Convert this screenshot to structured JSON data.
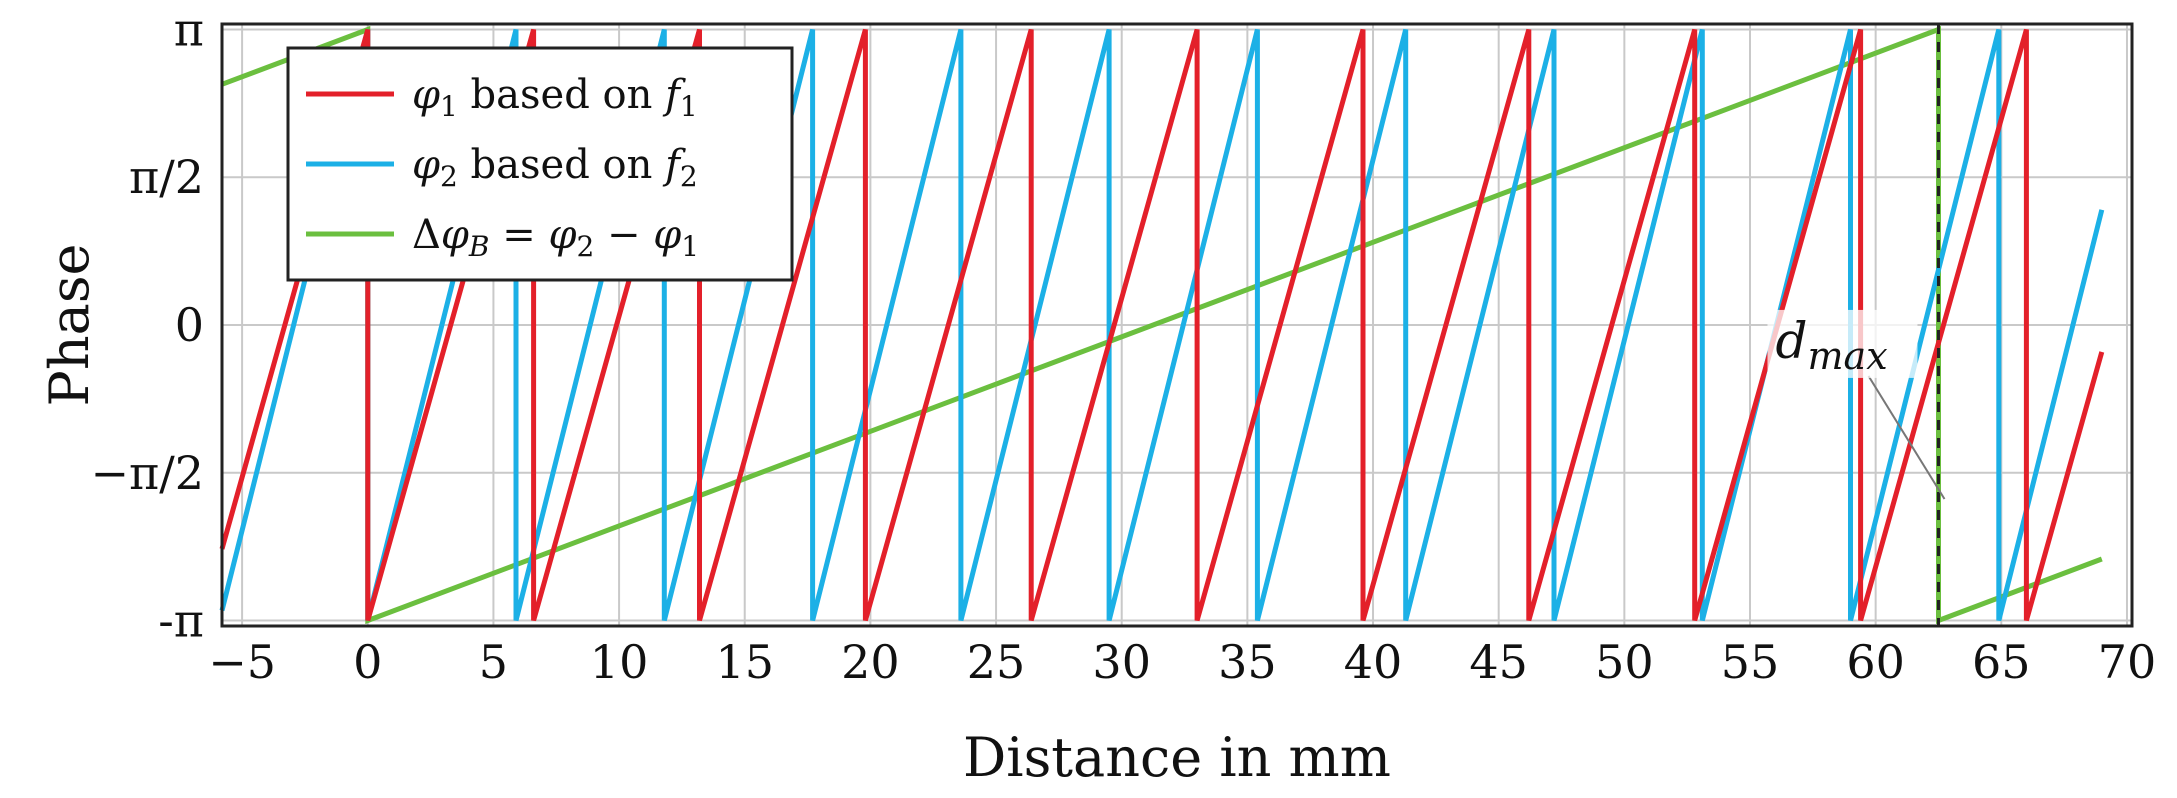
{
  "chart_data": {
    "type": "line",
    "xlabel": "Distance in mm",
    "ylabel": "Phase",
    "xlim": [
      -5.8,
      70.2
    ],
    "ylim": [
      -3.2,
      3.2
    ],
    "grid": true,
    "x_ticks": [
      -5,
      0,
      5,
      10,
      15,
      20,
      25,
      30,
      35,
      40,
      45,
      50,
      55,
      60,
      65,
      70
    ],
    "x_tick_labels": [
      "−5",
      "0",
      "5",
      "10",
      "15",
      "20",
      "25",
      "30",
      "35",
      "40",
      "45",
      "50",
      "55",
      "60",
      "65",
      "70"
    ],
    "y_ticks": [
      -3.14159,
      -1.5708,
      0,
      1.5708,
      3.14159
    ],
    "y_tick_labels": [
      "-π",
      "−π/2",
      "0",
      "π/2",
      "π"
    ],
    "legend_position": "top-left",
    "colors": {
      "phi1": "#e3202a",
      "phi2": "#1cb0e6",
      "delta": "#6bbf3f",
      "grid": "#c9c9c9",
      "marker": "#222222"
    },
    "series": [
      {
        "name": "φ1 based on f1",
        "legend": {
          "sym": "φ",
          "sub": "1",
          "mid": " based on ",
          "sym2": "f",
          "sub2": "1"
        },
        "color": "#e3202a",
        "kind": "sawtooth",
        "period_mm": 6.6,
        "x_range": [
          -5.8,
          69.0
        ]
      },
      {
        "name": "φ2 based on f2",
        "legend": {
          "sym": "φ",
          "sub": "2",
          "mid": " based on ",
          "sym2": "f",
          "sub2": "2"
        },
        "color": "#1cb0e6",
        "kind": "sawtooth",
        "period_mm": 5.9,
        "x_range": [
          -5.8,
          69.0
        ]
      },
      {
        "name": "ΔφB = φ2 − φ1",
        "legend": {
          "pre": "Δ",
          "sym": "φ",
          "sub": "B",
          "mid": " = ",
          "sym2": "φ",
          "sub2": "2",
          "mid2": " − ",
          "sym3": "φ",
          "sub3": "1"
        },
        "color": "#6bbf3f",
        "kind": "sawtooth",
        "period_mm": 62.5,
        "x_range": [
          -5.8,
          69.0
        ]
      }
    ],
    "annotations": [
      {
        "text": "dmax",
        "main": "d",
        "sub": "max",
        "x": 62.5,
        "type": "vertical-dashed-line"
      }
    ]
  }
}
